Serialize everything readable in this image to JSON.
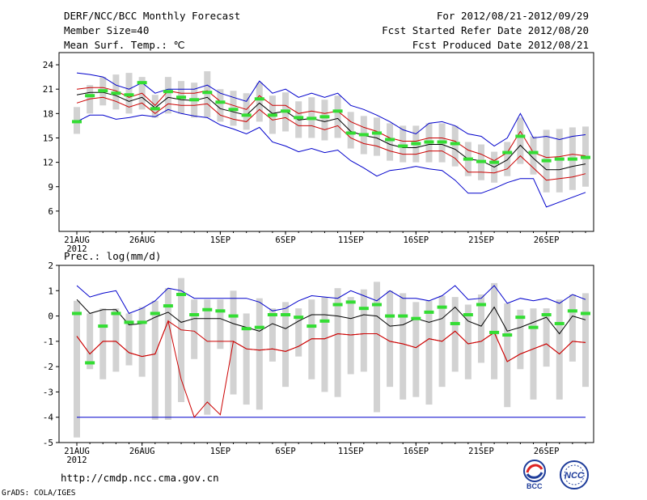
{
  "header": {
    "title": "DERF/NCC/BCC Monthly Forecast",
    "member_size": "Member Size=40",
    "variable": "Mean Surf. Temp.: ℃",
    "period": "For 2012/08/21-2012/09/29",
    "start_date": "Fcst Started Refer Date 2012/08/20",
    "produced_date": "Fcst Produced Date 2012/08/21"
  },
  "footer": {
    "url": "http://cmdp.ncc.cma.gov.cn",
    "credit": "GrADS: COLA/IGES",
    "logo_bcc": "BCC",
    "logo_ncc": "NCC"
  },
  "colors": {
    "max": "#0000cc",
    "sd": "#cc0000",
    "mean": "#000000",
    "control": "#33dd33",
    "box": "#d2d2d2"
  },
  "chart_data": [
    {
      "type": "line",
      "title": "Mean Surf. Temp.",
      "ylim": [
        3.5,
        25.5
      ],
      "yticks": [
        6,
        9,
        12,
        15,
        18,
        21,
        24
      ],
      "xticks": [
        {
          "day": 0,
          "label": "21AUG",
          "sub": "2012"
        },
        {
          "day": 5,
          "label": "26AUG"
        },
        {
          "day": 11,
          "label": "1SEP"
        },
        {
          "day": 16,
          "label": "6SEP"
        },
        {
          "day": 21,
          "label": "11SEP"
        },
        {
          "day": 26,
          "label": "16SEP"
        },
        {
          "day": 31,
          "label": "21SEP"
        },
        {
          "day": 36,
          "label": "26SEP"
        }
      ],
      "series": [
        {
          "name": "max",
          "values": [
            23,
            22.8,
            22.5,
            21.5,
            21,
            21.8,
            20.5,
            21,
            21,
            21,
            21.5,
            20.5,
            20,
            19.5,
            22,
            20.5,
            21,
            20,
            20.5,
            20,
            20.5,
            19,
            18.5,
            17.8,
            17,
            16,
            15.5,
            16.8,
            17,
            16.5,
            15.5,
            15.2,
            14,
            15,
            18,
            15,
            15.2,
            14.8,
            15.2,
            15.4
          ]
        },
        {
          "name": "sd_upper",
          "values": [
            21,
            21.2,
            21.2,
            20.8,
            20,
            20.5,
            19,
            20.8,
            20.5,
            20.5,
            20.8,
            19.5,
            19,
            18.5,
            20.2,
            19,
            19,
            18,
            18.3,
            18,
            18.3,
            17,
            16.3,
            15.8,
            15,
            14.6,
            14.6,
            15,
            15,
            14.6,
            13.5,
            13,
            12.2,
            13.2,
            15.8,
            13.2,
            12.6,
            12.7,
            13,
            12.8
          ]
        },
        {
          "name": "mean",
          "values": [
            20.3,
            20.6,
            20.6,
            20.2,
            19.5,
            20,
            18.7,
            20,
            19.7,
            19.6,
            20,
            18.6,
            18.2,
            17.8,
            19.3,
            18,
            18.3,
            17.2,
            17.4,
            17,
            17.4,
            15.8,
            15.3,
            15,
            14.2,
            13.8,
            13.8,
            14.2,
            14.2,
            13.6,
            12.4,
            12.2,
            11.4,
            12.3,
            14.1,
            12.5,
            11.1,
            11.1,
            11.5,
            11.8
          ]
        },
        {
          "name": "sd_lower",
          "values": [
            19.3,
            19.8,
            20,
            19.5,
            18.8,
            19.3,
            18,
            19.2,
            19,
            19,
            19.2,
            17.8,
            17.3,
            17,
            18.5,
            17.2,
            17.5,
            16.5,
            16.5,
            16,
            16.5,
            15,
            14.3,
            14,
            13.4,
            13,
            13,
            13.4,
            13.4,
            12.5,
            10.8,
            10.8,
            10.7,
            11.2,
            12.8,
            11.3,
            9.8,
            10,
            10.2,
            10.6
          ]
        },
        {
          "name": "min",
          "values": [
            17,
            17.8,
            17.8,
            17.3,
            17.5,
            17.8,
            17.6,
            18.5,
            18,
            17.7,
            17.5,
            16.6,
            16.1,
            15.5,
            16.3,
            14.5,
            14,
            13.3,
            13.7,
            13.2,
            13.5,
            12.2,
            11.3,
            10.3,
            11,
            11.2,
            11.5,
            11.2,
            11,
            9.8,
            8.2,
            8.2,
            8.8,
            9.5,
            10,
            10,
            6.5,
            7.1,
            7.7,
            8.3
          ]
        },
        {
          "name": "control",
          "values": [
            17,
            20.2,
            20.8,
            20.5,
            20.3,
            21.8,
            18.6,
            20.7,
            20,
            19.7,
            20.6,
            19.4,
            18.5,
            17.8,
            19.8,
            17.8,
            18.3,
            17.5,
            17.4,
            17.6,
            18.3,
            15.6,
            15.4,
            15.6,
            14.8,
            14,
            14.3,
            14.5,
            14.5,
            14.3,
            12.4,
            12.1,
            12,
            13.2,
            15.2,
            13.2,
            12.2,
            12.4,
            12.4,
            12.6
          ]
        },
        {
          "name": "box_low",
          "values": [
            15.5,
            18,
            19,
            18.5,
            18,
            18.5,
            17.5,
            18,
            18,
            17.5,
            17.5,
            17,
            16.5,
            16,
            17,
            15.5,
            15.8,
            15,
            15,
            14.7,
            15,
            13.7,
            13,
            12.8,
            12.2,
            12,
            12,
            12,
            12,
            11.5,
            10.3,
            9.8,
            9.5,
            10.3,
            11.8,
            10.5,
            8.3,
            8.3,
            8.6,
            9
          ]
        },
        {
          "name": "box_high",
          "values": [
            18.8,
            21.5,
            22.5,
            22.8,
            23,
            22.5,
            20.3,
            22.5,
            22,
            21.8,
            23.2,
            21,
            20.8,
            20.5,
            21.8,
            20.2,
            20.6,
            19.5,
            20,
            19.7,
            20.2,
            18.2,
            17.7,
            17.5,
            16.8,
            16.5,
            16.5,
            16.8,
            16.8,
            16.5,
            14.5,
            14.2,
            13.3,
            14.5,
            17.5,
            15.2,
            16,
            16.1,
            16.3,
            16.4
          ]
        }
      ]
    },
    {
      "type": "line",
      "title": "Prec.: log(mm/d)",
      "ylim": [
        -5,
        2
      ],
      "yticks": [
        -5,
        -4,
        -3,
        -2,
        -1,
        0,
        1,
        2
      ],
      "xticks": [
        {
          "day": 0,
          "label": "21AUG",
          "sub": "2012"
        },
        {
          "day": 5,
          "label": "26AUG"
        },
        {
          "day": 11,
          "label": "1SEP"
        },
        {
          "day": 16,
          "label": "6SEP"
        },
        {
          "day": 21,
          "label": "11SEP"
        },
        {
          "day": 26,
          "label": "16SEP"
        },
        {
          "day": 31,
          "label": "21SEP"
        },
        {
          "day": 36,
          "label": "26SEP"
        }
      ],
      "series": [
        {
          "name": "max",
          "values": [
            1.2,
            0.75,
            0.9,
            1,
            0.1,
            0.3,
            0.6,
            1.1,
            1,
            0.7,
            0.7,
            0.7,
            0.7,
            0.7,
            0.55,
            0.2,
            0.3,
            0.6,
            0.8,
            0.75,
            0.7,
            1,
            0.8,
            0.6,
            1,
            0.7,
            0.7,
            0.6,
            0.8,
            1.2,
            0.65,
            0.7,
            1.2,
            0.5,
            0.7,
            0.6,
            0.7,
            0.5,
            0.85,
            0.65
          ]
        },
        {
          "name": "mean",
          "values": [
            0.65,
            0.1,
            0.25,
            0.25,
            -0.35,
            -0.3,
            -0.05,
            0.15,
            -0.25,
            -0.1,
            -0.1,
            -0.1,
            -0.3,
            -0.45,
            -0.6,
            -0.3,
            -0.5,
            -0.2,
            0.05,
            0.05,
            0,
            -0.1,
            0.05,
            0,
            -0.4,
            -0.35,
            -0.1,
            -0.25,
            -0.1,
            0.35,
            -0.2,
            -0.4,
            0.35,
            -0.6,
            -0.45,
            -0.25,
            -0.05,
            -0.7,
            0,
            -0.15
          ]
        },
        {
          "name": "sd_upper",
          "values": [
            -0.8,
            -1.5,
            -1,
            -1,
            -1.45,
            -1.6,
            -1.5,
            -0.2,
            -2.5,
            -4,
            -3.4,
            -3.9,
            -1,
            -1.3,
            -1.35,
            -1.3,
            -1.4,
            -1.2,
            -0.9,
            -0.9,
            -0.7,
            -0.75,
            -0.7,
            -0.7,
            -1,
            -1.1,
            -1.25,
            -0.9,
            -1,
            -0.6,
            -1.1,
            -1,
            -0.65,
            -1.8,
            -1.5,
            -1.3,
            -1.1,
            -1.5,
            -1,
            -1.05
          ]
        },
        {
          "name": "sd_lower",
          "values": [
            -0.8,
            -1.5,
            -1,
            -1,
            -1.45,
            -1.6,
            -1.5,
            -0.2,
            -0.55,
            -0.6,
            -1,
            -1,
            -1,
            -1.3,
            -1.35,
            -1.3,
            -1.4,
            -1.2,
            -0.9,
            -0.9,
            -0.7,
            -0.75,
            -0.7,
            -0.7,
            -1,
            -1.1,
            -1.25,
            -0.9,
            -1,
            -0.6,
            -1.1,
            -1,
            -0.65,
            -1.8,
            -1.5,
            -1.3,
            -1.1,
            -1.5,
            -1,
            -1.05
          ]
        },
        {
          "name": "min",
          "values": [
            -4,
            -4,
            -4,
            -4,
            -4,
            -4,
            -4,
            -4,
            -4,
            -4,
            -4,
            -4,
            -4,
            -4,
            -4,
            -4,
            -4,
            -4,
            -4,
            -4,
            -4,
            -4,
            -4,
            -4,
            -4,
            -4,
            -4,
            -4,
            -4,
            -4,
            -4,
            -4,
            -4,
            -4,
            -4,
            -4,
            -4,
            -4,
            -4,
            -4
          ]
        },
        {
          "name": "control",
          "values": [
            0.1,
            -1.85,
            -0.4,
            0.1,
            -0.25,
            -0.25,
            0.1,
            0.4,
            0.85,
            0.05,
            0.25,
            0.2,
            0,
            -0.5,
            -0.45,
            0.05,
            0.05,
            -0.05,
            -0.4,
            -0.2,
            0.45,
            0.55,
            0.3,
            0.45,
            0,
            0,
            -0.1,
            0.15,
            0.35,
            -0.3,
            0.05,
            0.45,
            -0.65,
            -0.75,
            -0.05,
            -0.45,
            0.05,
            -0.3,
            0.2,
            0.1
          ]
        },
        {
          "name": "box_low",
          "values": [
            -4.8,
            -2.1,
            -2.5,
            -2.2,
            -1.95,
            -2.4,
            -4.1,
            -4.1,
            -3.4,
            -1.7,
            -3.9,
            -1.3,
            -3.1,
            -3.5,
            -3.7,
            -1.8,
            -2.8,
            -1.6,
            -2.5,
            -3,
            -3.2,
            -2.3,
            -2.2,
            -3.8,
            -2.8,
            -3.3,
            -3.2,
            -3.5,
            -2.8,
            -2.2,
            -2.5,
            -1.85,
            -2.5,
            -3.6,
            -2.1,
            -3.3,
            -2,
            -3.3,
            -1.8,
            -2.8
          ]
        },
        {
          "name": "box_high",
          "values": [
            0.6,
            0.1,
            0.3,
            0.3,
            0.1,
            0.35,
            0.6,
            1.1,
            1.5,
            0.65,
            0.65,
            0.65,
            1,
            0.1,
            0.7,
            0.3,
            0.55,
            0.3,
            0.65,
            0.75,
            1.1,
            0.75,
            1.05,
            1.35,
            1,
            0.9,
            0.55,
            0.6,
            0.8,
            0.75,
            0.45,
            0.85,
            1.3,
            0.5,
            0.25,
            0.3,
            0.3,
            0.65,
            0.85,
            0.9
          ]
        }
      ]
    }
  ]
}
